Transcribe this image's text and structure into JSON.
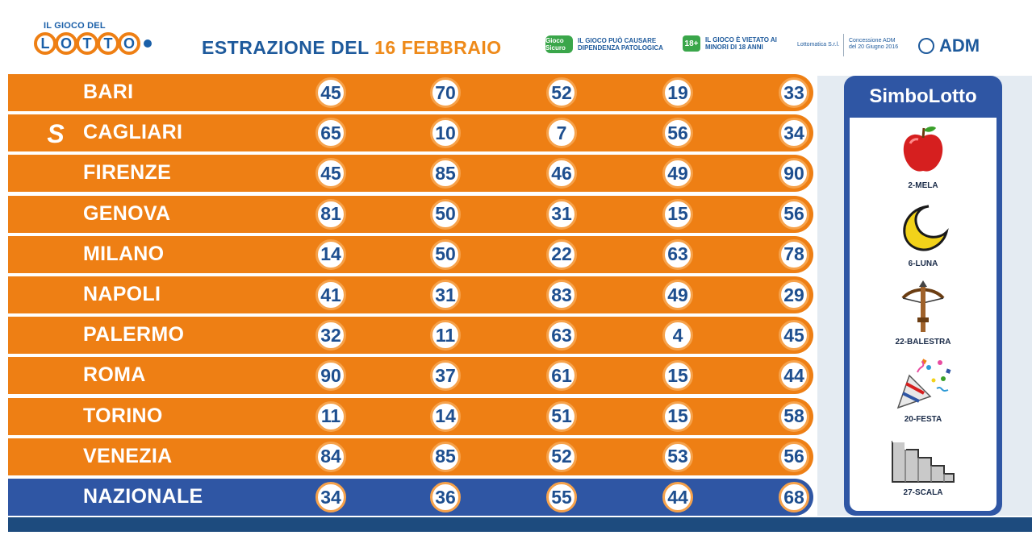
{
  "header": {
    "logo_top": "IL GIOCO DEL",
    "logo_letters": [
      "L",
      "O",
      "T",
      "T",
      "O"
    ],
    "title_prefix": "ESTRAZIONE DEL",
    "title_date": "16 FEBBRAIO",
    "warning1_badge": "Gioco Sicuro",
    "warning1_text": "IL GIOCO PUÒ CAUSARE DIPENDENZA PATOLOGICA",
    "warning2_badge": "18+",
    "warning2_text": "IL GIOCO È VIETATO AI MINORI DI 18 ANNI",
    "operator_text": "Lottomatica S.r.l.",
    "concession_text": "Concessione ADM del 20 Giugno 2016",
    "adm_label": "ADM"
  },
  "draws": [
    {
      "city": "BARI",
      "numbers": [
        "45",
        "70",
        "52",
        "19",
        "33"
      ]
    },
    {
      "city": "CAGLIARI",
      "numbers": [
        "65",
        "10",
        "7",
        "56",
        "34"
      ]
    },
    {
      "city": "FIRENZE",
      "numbers": [
        "45",
        "85",
        "46",
        "49",
        "90"
      ]
    },
    {
      "city": "GENOVA",
      "numbers": [
        "81",
        "50",
        "31",
        "15",
        "56"
      ]
    },
    {
      "city": "MILANO",
      "numbers": [
        "14",
        "50",
        "22",
        "63",
        "78"
      ]
    },
    {
      "city": "NAPOLI",
      "numbers": [
        "41",
        "31",
        "83",
        "49",
        "29"
      ]
    },
    {
      "city": "PALERMO",
      "numbers": [
        "32",
        "11",
        "63",
        "4",
        "45"
      ]
    },
    {
      "city": "ROMA",
      "numbers": [
        "90",
        "37",
        "61",
        "15",
        "44"
      ]
    },
    {
      "city": "TORINO",
      "numbers": [
        "11",
        "14",
        "51",
        "15",
        "58"
      ]
    },
    {
      "city": "VENEZIA",
      "numbers": [
        "84",
        "85",
        "52",
        "53",
        "56"
      ]
    },
    {
      "city": "NAZIONALE",
      "numbers": [
        "34",
        "36",
        "55",
        "44",
        "68"
      ]
    }
  ],
  "simbolo_city_mark": "S",
  "simbolotto": {
    "title": "SimboLotto",
    "symbols": [
      {
        "label": "2-MELA",
        "icon": "apple-icon"
      },
      {
        "label": "6-LUNA",
        "icon": "moon-icon"
      },
      {
        "label": "22-BALESTRA",
        "icon": "crossbow-icon"
      },
      {
        "label": "20-FESTA",
        "icon": "party-popper-icon"
      },
      {
        "label": "27-SCALA",
        "icon": "stairs-icon"
      }
    ]
  },
  "colors": {
    "orange": "#ee7f14",
    "blue": "#2f56a4",
    "navy": "#1e4f8f"
  }
}
